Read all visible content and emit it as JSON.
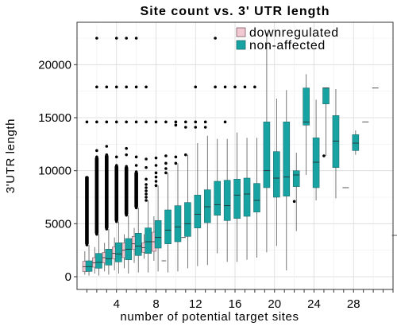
{
  "chart_data": {
    "type": "box",
    "title": "Site count vs. 3' UTR length",
    "xlabel": "number of potential target sites",
    "ylabel": "3'UTR length",
    "xlim": [
      0,
      32
    ],
    "ylim": [
      -1200,
      24000
    ],
    "xticks": [
      4,
      8,
      12,
      16,
      20,
      24,
      28
    ],
    "yticks": [
      0,
      5000,
      10000,
      15000,
      20000
    ],
    "grid": true,
    "legend_position": "top-right",
    "series": [
      {
        "name": "downregulated",
        "color": "#f2c8d2",
        "boxes": [
          {
            "x": 1,
            "q1": 480,
            "median": 950,
            "q3": 1450,
            "whislo": 200,
            "whishi": 2400
          },
          {
            "x": 2,
            "q1": 900,
            "median": 1300,
            "q3": 1800,
            "whislo": 300,
            "whishi": 2800
          },
          {
            "x": 3,
            "q1": 1300,
            "median": 1800,
            "q3": 2300,
            "whislo": 500,
            "whishi": 3200
          },
          {
            "x": 4,
            "q1": 1700,
            "median": 2200,
            "q3": 2800,
            "whislo": 600,
            "whishi": 3700
          },
          {
            "x": 5,
            "q1": 1800,
            "median": 2500,
            "q3": 3200,
            "whislo": 800,
            "whishi": 4000
          },
          {
            "x": 6,
            "q1": 2600,
            "median": 3100,
            "q3": 3800,
            "whislo": 1300,
            "whishi": 4600
          },
          {
            "x": 7,
            "q1": 2300,
            "median": 2750,
            "q3": 3200,
            "whislo": 1700,
            "whishi": 4000
          },
          {
            "x": 8,
            "q1": 2400,
            "median": 3300,
            "q3": 4200,
            "whislo": 1500,
            "whishi": 5700
          }
        ],
        "flat": [
          {
            "x": 9,
            "value": 1500
          },
          {
            "x": 11,
            "value": 3700
          }
        ]
      },
      {
        "name": "non-affected",
        "color": "#18a3a3",
        "boxes": [
          {
            "x": 1,
            "q1": 500,
            "median": 950,
            "q3": 1500,
            "whislo": 100,
            "whishi": 3000
          },
          {
            "x": 2,
            "q1": 800,
            "median": 1350,
            "q3": 2200,
            "whislo": 100,
            "whishi": 4000
          },
          {
            "x": 3,
            "q1": 1100,
            "median": 1700,
            "q3": 2600,
            "whislo": 200,
            "whishi": 4500
          },
          {
            "x": 4,
            "q1": 1400,
            "median": 2150,
            "q3": 3200,
            "whislo": 300,
            "whishi": 5200
          },
          {
            "x": 5,
            "q1": 1600,
            "median": 2600,
            "q3": 3600,
            "whislo": 300,
            "whishi": 5800
          },
          {
            "x": 6,
            "q1": 2000,
            "median": 2900,
            "q3": 4100,
            "whislo": 400,
            "whishi": 6500
          },
          {
            "x": 7,
            "q1": 2200,
            "median": 3300,
            "q3": 4600,
            "whislo": 400,
            "whishi": 7200
          },
          {
            "x": 8,
            "q1": 2700,
            "median": 3700,
            "q3": 5300,
            "whislo": 500,
            "whishi": 8600
          },
          {
            "x": 9,
            "q1": 3100,
            "median": 4400,
            "q3": 6300,
            "whislo": 400,
            "whishi": 9800
          },
          {
            "x": 10,
            "q1": 3300,
            "median": 4700,
            "q3": 6700,
            "whislo": 500,
            "whishi": 10700
          },
          {
            "x": 11,
            "q1": 3800,
            "median": 5000,
            "q3": 7000,
            "whislo": 800,
            "whishi": 11500
          },
          {
            "x": 12,
            "q1": 4600,
            "median": 5900,
            "q3": 7700,
            "whislo": 1000,
            "whishi": 12600
          },
          {
            "x": 13,
            "q1": 5100,
            "median": 6600,
            "q3": 8200,
            "whislo": 1100,
            "whishi": 13300
          },
          {
            "x": 14,
            "q1": 5800,
            "median": 6800,
            "q3": 9000,
            "whislo": 2200,
            "whishi": 13000
          },
          {
            "x": 15,
            "q1": 5300,
            "median": 6700,
            "q3": 9100,
            "whislo": 1400,
            "whishi": 13000
          },
          {
            "x": 16,
            "q1": 5500,
            "median": 7700,
            "q3": 9200,
            "whislo": 1400,
            "whishi": 13600
          },
          {
            "x": 17,
            "q1": 5700,
            "median": 7800,
            "q3": 9300,
            "whislo": 1600,
            "whishi": 13100
          },
          {
            "x": 18,
            "q1": 6100,
            "median": 7200,
            "q3": 8800,
            "whislo": 1800,
            "whishi": 13100
          },
          {
            "x": 19,
            "q1": 8400,
            "median": 10000,
            "q3": 14600,
            "whislo": 2300,
            "whishi": 23000
          },
          {
            "x": 20,
            "q1": 7500,
            "median": 9300,
            "q3": 11800,
            "whislo": 2900,
            "whishi": 16800
          },
          {
            "x": 21,
            "q1": 7600,
            "median": 9400,
            "q3": 14600,
            "whislo": 600,
            "whishi": 17600
          },
          {
            "x": 22,
            "q1": 8500,
            "median": 9600,
            "q3": 10000,
            "whislo": 4300,
            "whishi": 11700
          },
          {
            "x": 23,
            "q1": 14300,
            "median": 14600,
            "q3": 17800,
            "whislo": 9600,
            "whishi": 19100
          },
          {
            "x": 24,
            "q1": 8400,
            "median": 10800,
            "q3": 13100,
            "whislo": 7200,
            "whishi": 16700
          },
          {
            "x": 25,
            "q1": 16300,
            "median": 17800,
            "q3": 17800,
            "whislo": 11400,
            "whishi": 17800
          },
          {
            "x": 26,
            "q1": 10300,
            "median": 12800,
            "q3": 15200,
            "whislo": 7400,
            "whishi": 17700
          },
          {
            "x": 28,
            "q1": 11900,
            "median": 12600,
            "q3": 13400,
            "whislo": 11500,
            "whishi": 13800
          }
        ],
        "flat": [
          {
            "x": 27,
            "value": 8400
          },
          {
            "x": 29,
            "value": 14600
          },
          {
            "x": 30,
            "value": 17800
          },
          {
            "x": 32,
            "value": 3900
          }
        ]
      }
    ],
    "outlier_groups": [
      {
        "x": 1,
        "values": [
          3000,
          3200,
          3400,
          3700,
          4000,
          5300,
          14600
        ],
        "dense_range": [
          3000,
          9500
        ]
      },
      {
        "x": 2,
        "values": [
          4000,
          4300,
          4600,
          5300,
          11300,
          11900,
          14600,
          17900,
          22500
        ],
        "dense_range": [
          4000,
          11300
        ]
      },
      {
        "x": 3,
        "values": [
          4500,
          4800,
          5100,
          11500,
          12300,
          14600,
          17900
        ],
        "dense_range": [
          4500,
          11500
        ]
      },
      {
        "x": 4,
        "values": [
          5200,
          5500,
          10500,
          11300,
          14600,
          17900,
          22500
        ],
        "dense_range": [
          5200,
          10500
        ]
      },
      {
        "x": 5,
        "values": [
          5800,
          6200,
          10400,
          11500,
          12100,
          14600,
          17900,
          22500
        ],
        "dense_range": [
          5800,
          10400
        ]
      },
      {
        "x": 6,
        "values": [
          6500,
          6900,
          9900,
          10500,
          11300,
          14600,
          17900,
          22500
        ],
        "dense_range": [
          6500,
          9900
        ]
      },
      {
        "x": 7,
        "values": [
          7200,
          7500,
          7800,
          8100,
          8400,
          8700,
          9200,
          10300,
          11100,
          14600,
          17900
        ],
        "dense_range": null
      },
      {
        "x": 8,
        "values": [
          8600,
          9000,
          9400,
          9800,
          10500,
          11200,
          14600
        ],
        "dense_range": null
      },
      {
        "x": 9,
        "values": [
          9800,
          10200,
          10700,
          11400,
          14600
        ],
        "dense_range": null
      },
      {
        "x": 10,
        "values": [
          10700,
          11300,
          14300,
          14600
        ],
        "dense_range": null
      },
      {
        "x": 11,
        "values": [
          11500,
          14100,
          14600
        ],
        "dense_range": null
      },
      {
        "x": 12,
        "values": [
          14100,
          14600,
          17900
        ],
        "dense_range": null
      },
      {
        "x": 13,
        "values": [
          14100,
          14600
        ],
        "dense_range": null
      },
      {
        "x": 14,
        "values": [
          17900,
          22500
        ],
        "dense_range": null
      },
      {
        "x": 15,
        "values": [
          14600,
          17900
        ],
        "dense_range": null
      },
      {
        "x": 16,
        "values": [
          17900
        ],
        "dense_range": null
      },
      {
        "x": 17,
        "values": [
          17900
        ],
        "dense_range": null
      },
      {
        "x": 18,
        "values": [
          17900
        ],
        "dense_range": null
      },
      {
        "x": 22,
        "values": [
          7100
        ],
        "dense_range": null
      },
      {
        "x": 25,
        "values": [
          11400
        ],
        "dense_range": null
      }
    ]
  }
}
